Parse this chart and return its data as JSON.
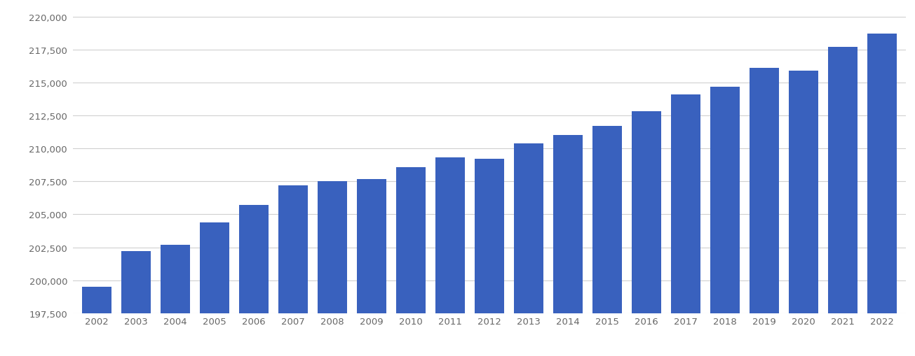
{
  "years": [
    2002,
    2003,
    2004,
    2005,
    2006,
    2007,
    2008,
    2009,
    2010,
    2011,
    2012,
    2013,
    2014,
    2015,
    2016,
    2017,
    2018,
    2019,
    2020,
    2021,
    2022
  ],
  "values": [
    199500,
    202200,
    202700,
    204400,
    205700,
    207200,
    207500,
    207700,
    208600,
    209300,
    209200,
    210400,
    211000,
    211700,
    212800,
    214100,
    214700,
    216100,
    215900,
    217700,
    218700
  ],
  "bar_color": "#3961be",
  "ymin": 197500,
  "ymax": 220500,
  "yticks": [
    197500,
    200000,
    202500,
    205000,
    207500,
    210000,
    212500,
    215000,
    217500,
    220000
  ],
  "background_color": "#ffffff",
  "grid_color": "#d0d0d0",
  "tick_color": "#666666",
  "bar_width": 0.75,
  "figsize": [
    13.05,
    5.1
  ],
  "dpi": 100
}
